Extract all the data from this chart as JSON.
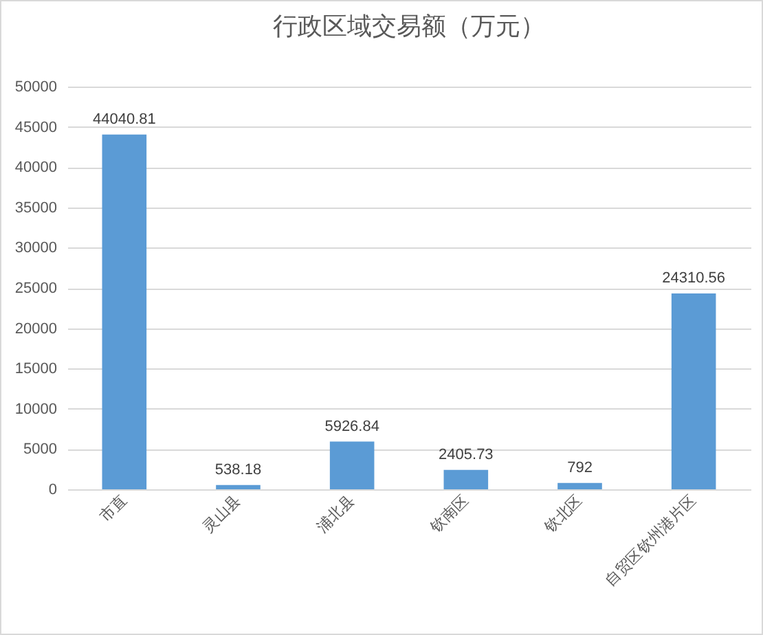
{
  "chart_data": {
    "type": "bar",
    "title": "行政区域交易额（万元）",
    "categories": [
      "市直",
      "灵山县",
      "浦北县",
      "钦南区",
      "钦北区",
      "自贸区钦州港片区"
    ],
    "values": [
      44040.81,
      538.18,
      5926.84,
      2405.73,
      792,
      24310.56
    ],
    "color": "#5b9bd5",
    "ylim": [
      0,
      50000
    ],
    "yticks": [
      0,
      5000,
      10000,
      15000,
      20000,
      25000,
      30000,
      35000,
      40000,
      45000,
      50000
    ],
    "grid": "y",
    "data_labels": true
  }
}
